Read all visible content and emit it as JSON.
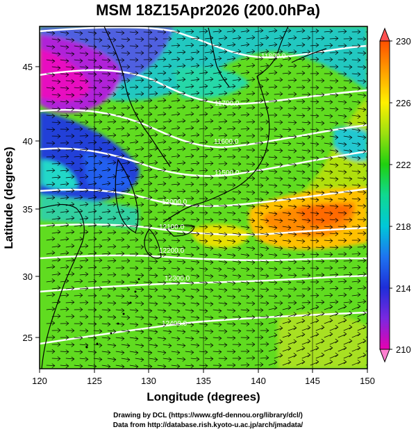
{
  "title": "MSM 18Z15Apr2026 (200.0hPa)",
  "footer": {
    "line1": "Drawing by DCL (https://www.gfd-dennou.org/library/dcl/)",
    "line2": "Data from http://database.rish.kyoto-u.ac.jp/arch/jmadata/"
  },
  "map": {
    "x_axis_label": "Longitude (degrees)",
    "y_axis_label": "Latitude  (degrees)",
    "x_ticks": [
      "120",
      "125",
      "130",
      "135",
      "140",
      "145",
      "150"
    ],
    "y_ticks": [
      "45",
      "40",
      "35",
      "30",
      "25"
    ],
    "lon_range": [
      120,
      150
    ],
    "lat_range": [
      22.4,
      47.6
    ],
    "field": "temperature (K), shaded",
    "contour_field": "geopotential height (m), white lines, interval 100",
    "contour_labels": [
      "11800.0",
      "11700.0",
      "11600.0",
      "11500.0",
      "12000.0",
      "12100.0",
      "12200.0",
      "12300.0",
      "12400.0"
    ],
    "vector_field": "wind arrows (streamline style)"
  },
  "colorbar": {
    "min": 210,
    "max": 230,
    "tick_labels": [
      "230",
      "226",
      "222",
      "218",
      "214",
      "210"
    ],
    "colors": {
      "210": "#e800b0",
      "212": "#7a28e0",
      "214": "#1e2ed8",
      "216": "#1e74f0",
      "218": "#00c8d8",
      "220": "#10d890",
      "222": "#20d010",
      "224": "#9ce010",
      "226": "#fff000",
      "228": "#ffa000",
      "230": "#ff5000"
    }
  }
}
